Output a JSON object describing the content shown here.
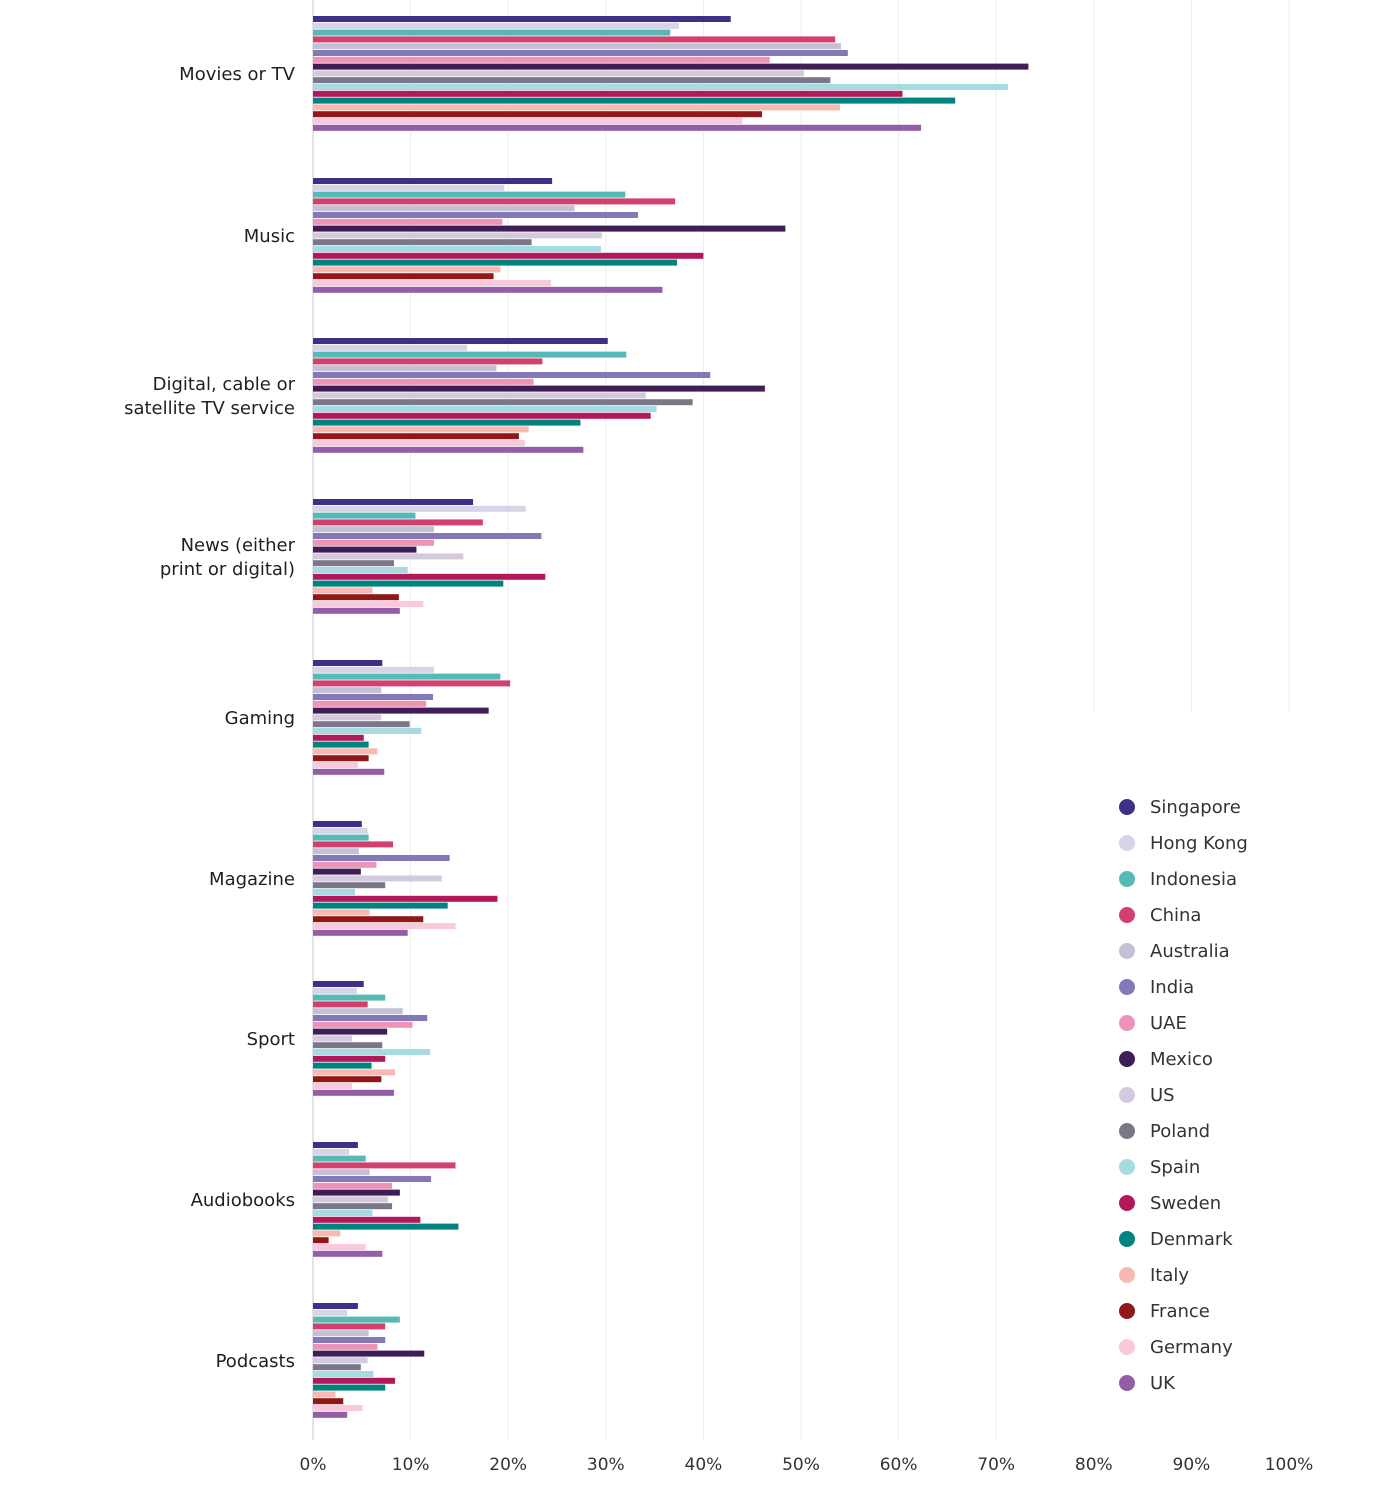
{
  "chart_data": {
    "type": "bar",
    "orientation": "horizontal",
    "categories": [
      [
        "Movies or TV"
      ],
      [
        "Music"
      ],
      [
        "Digital, cable or",
        "satellite TV service"
      ],
      [
        "News (either",
        "print or digital)"
      ],
      [
        "Gaming"
      ],
      [
        "Magazine"
      ],
      [
        "Sport"
      ],
      [
        "Audiobooks"
      ],
      [
        "Podcasts"
      ]
    ],
    "x_ticks": [
      "0%",
      "10%",
      "20%",
      "30%",
      "40%",
      "50%",
      "60%",
      "70%",
      "80%",
      "90%",
      "100%"
    ],
    "xlim": [
      0,
      100
    ],
    "grid": true,
    "legend_position": "right",
    "series": [
      {
        "name": "Singapore",
        "color": "#3f2f87",
        "values": [
          42.8,
          24.5,
          30.2,
          16.4,
          7.1,
          5.0,
          5.2,
          4.6,
          4.6
        ]
      },
      {
        "name": "Hong Kong",
        "color": "#d6d4e6",
        "values": [
          37.5,
          19.6,
          15.8,
          21.8,
          12.4,
          5.6,
          4.5,
          3.7,
          3.5
        ]
      },
      {
        "name": "Indonesia",
        "color": "#55bab5",
        "values": [
          36.6,
          32.0,
          32.1,
          10.5,
          19.2,
          5.7,
          7.4,
          5.4,
          8.9
        ]
      },
      {
        "name": "China",
        "color": "#d2406f",
        "values": [
          53.5,
          37.1,
          23.5,
          17.4,
          20.2,
          8.2,
          5.6,
          14.6,
          7.4
        ]
      },
      {
        "name": "Australia",
        "color": "#c5c1d4",
        "values": [
          54.1,
          26.8,
          18.8,
          12.4,
          7.0,
          4.7,
          9.2,
          5.8,
          5.7
        ]
      },
      {
        "name": "India",
        "color": "#8479b8",
        "values": [
          54.8,
          33.3,
          40.7,
          23.4,
          12.3,
          14.0,
          11.7,
          12.1,
          7.4
        ]
      },
      {
        "name": "UAE",
        "color": "#ed93b8",
        "values": [
          46.8,
          19.4,
          22.6,
          12.4,
          11.6,
          6.5,
          10.2,
          8.1,
          6.6
        ]
      },
      {
        "name": "Mexico",
        "color": "#3e1e55",
        "values": [
          73.3,
          48.4,
          46.3,
          10.6,
          18.0,
          4.9,
          7.6,
          8.9,
          11.4
        ]
      },
      {
        "name": "US",
        "color": "#d4cadd",
        "values": [
          50.3,
          29.6,
          34.1,
          15.4,
          7.0,
          13.2,
          4.0,
          7.7,
          5.6
        ]
      },
      {
        "name": "Poland",
        "color": "#7c7788",
        "values": [
          53.0,
          22.4,
          38.9,
          8.3,
          9.9,
          7.4,
          7.1,
          8.1,
          4.9
        ]
      },
      {
        "name": "Spain",
        "color": "#a6dbe2",
        "values": [
          71.2,
          29.5,
          35.2,
          9.7,
          11.1,
          4.3,
          12.0,
          6.1,
          6.2
        ]
      },
      {
        "name": "Sweden",
        "color": "#b2185a",
        "values": [
          60.4,
          40.0,
          34.6,
          23.8,
          5.2,
          18.9,
          7.4,
          11.0,
          8.4
        ]
      },
      {
        "name": "Denmark",
        "color": "#00837e",
        "values": [
          65.8,
          37.3,
          27.4,
          19.5,
          5.7,
          13.8,
          6.0,
          14.9,
          7.4
        ]
      },
      {
        "name": "Italy",
        "color": "#f7b9b1",
        "values": [
          54.0,
          19.2,
          22.1,
          6.1,
          6.6,
          5.8,
          8.4,
          2.8,
          2.3
        ]
      },
      {
        "name": "France",
        "color": "#911818",
        "values": [
          46.0,
          18.5,
          21.1,
          8.8,
          5.7,
          11.3,
          7.0,
          1.6,
          3.1
        ]
      },
      {
        "name": "Germany",
        "color": "#f8cadb",
        "values": [
          44.0,
          24.4,
          21.7,
          11.3,
          4.6,
          14.6,
          4.0,
          5.4,
          5.1
        ]
      },
      {
        "name": "UK",
        "color": "#945ea6",
        "values": [
          62.3,
          35.8,
          27.7,
          8.9,
          7.3,
          9.7,
          8.3,
          7.1,
          3.5
        ]
      }
    ]
  }
}
